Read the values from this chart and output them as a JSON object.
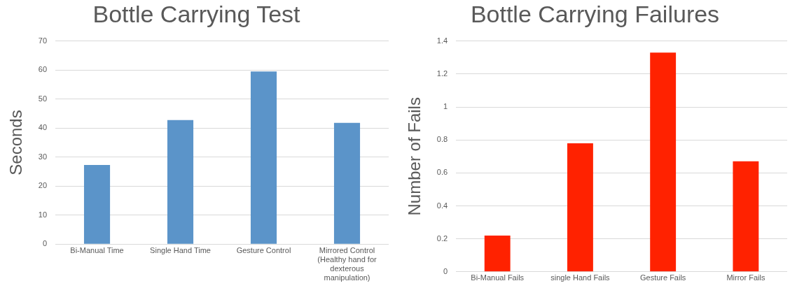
{
  "chart_data": [
    {
      "type": "bar",
      "title": "Bottle Carrying Test",
      "ylabel": "Seconds",
      "categories": [
        "Bi-Manual Time",
        "Single Hand Time",
        "Gesture Control",
        "Mirrored Control (Healthy hand for dexterous manipulation)"
      ],
      "values": [
        27.3,
        42.8,
        59.5,
        41.8
      ],
      "color": "#5b94c9",
      "ylim": [
        0,
        70
      ],
      "yticks": [
        0,
        10,
        20,
        30,
        40,
        50,
        60,
        70
      ],
      "grid": "y",
      "legend": false
    },
    {
      "type": "bar",
      "title": "Bottle Carrying Failures",
      "ylabel": "Number of Fails",
      "categories": [
        "Bi-Manual Fails",
        "single Hand Fails",
        "Gesture Fails",
        "Mirror Fails"
      ],
      "values": [
        0.22,
        0.78,
        1.33,
        0.67
      ],
      "color": "#ff2200",
      "ylim": [
        0,
        1.4
      ],
      "yticks": [
        0,
        0.2,
        0.4,
        0.6,
        0.8,
        1,
        1.2,
        1.4
      ],
      "grid": "y",
      "legend": false
    }
  ]
}
